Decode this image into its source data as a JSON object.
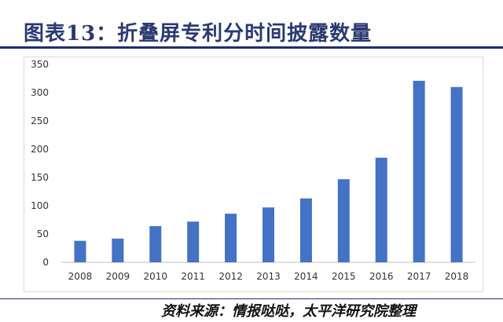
{
  "header": {
    "title": "图表13：折叠屏专利分时间披露数量"
  },
  "footer": {
    "source": "资料来源：情报哒哒，太平洋研究院整理"
  },
  "colors": {
    "bar": "#4472c4",
    "title": "#2b3a6f",
    "rule": "#1f2f6b"
  },
  "chart_data": {
    "type": "bar",
    "title": "",
    "xlabel": "",
    "ylabel": "",
    "categories": [
      "2008",
      "2009",
      "2010",
      "2011",
      "2012",
      "2013",
      "2014",
      "2015",
      "2016",
      "2017",
      "2018"
    ],
    "values": [
      38,
      42,
      64,
      72,
      86,
      97,
      113,
      147,
      185,
      321,
      310
    ],
    "ylim": [
      0,
      350
    ],
    "yticks": [
      0,
      50,
      100,
      150,
      200,
      250,
      300,
      350
    ],
    "grid": false,
    "legend": "none"
  }
}
